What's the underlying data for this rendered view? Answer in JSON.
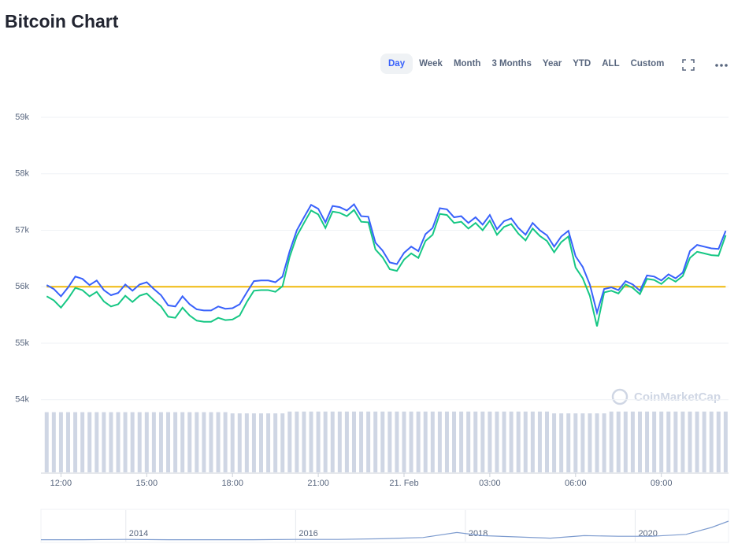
{
  "header": {
    "title": "Bitcoin Chart"
  },
  "toolbar": {
    "buttons": [
      "Day",
      "Week",
      "Month",
      "3 Months",
      "Year",
      "YTD",
      "ALL",
      "Custom"
    ],
    "active": 0
  },
  "watermark": "CoinMarketCap",
  "chart_data": {
    "type": "line",
    "x": [
      11.5,
      11.75,
      12,
      12.25,
      12.5,
      12.75,
      13,
      13.25,
      13.5,
      13.75,
      14,
      14.25,
      14.5,
      14.75,
      15,
      15.25,
      15.5,
      15.75,
      16,
      16.25,
      16.5,
      16.75,
      17,
      17.25,
      17.5,
      17.75,
      18,
      18.25,
      18.5,
      18.75,
      19,
      19.25,
      19.5,
      19.75,
      20,
      20.25,
      20.5,
      20.75,
      21,
      21.25,
      21.5,
      21.75,
      22,
      22.25,
      22.5,
      22.75,
      23,
      23.25,
      23.5,
      23.75,
      24,
      24.25,
      24.5,
      24.75,
      25,
      25.25,
      25.5,
      25.75,
      26,
      26.25,
      26.5,
      26.75,
      27,
      27.25,
      27.5,
      27.75,
      28,
      28.25,
      28.5,
      28.75,
      29,
      29.25,
      29.5,
      29.75,
      30,
      30.25,
      30.5,
      30.75,
      31,
      31.25,
      31.5,
      31.75,
      32,
      32.25,
      32.5,
      32.75,
      33,
      33.25,
      33.5,
      33.75,
      34,
      34.25,
      34.5,
      34.75,
      35,
      35.25
    ],
    "series": [
      {
        "color": "#3861fb",
        "values": [
          56030,
          55960,
          55830,
          55990,
          56180,
          56140,
          56030,
          56110,
          55940,
          55850,
          55890,
          56040,
          55930,
          56040,
          56080,
          55960,
          55850,
          55670,
          55650,
          55830,
          55690,
          55600,
          55580,
          55580,
          55650,
          55610,
          55620,
          55690,
          55900,
          56100,
          56110,
          56110,
          56080,
          56180,
          56630,
          57000,
          57230,
          57450,
          57380,
          57140,
          57430,
          57410,
          57350,
          57460,
          57250,
          57240,
          56780,
          56640,
          56430,
          56400,
          56600,
          56710,
          56630,
          56930,
          57040,
          57390,
          57370,
          57230,
          57250,
          57130,
          57230,
          57100,
          57270,
          57020,
          57160,
          57210,
          57040,
          56920,
          57130,
          57000,
          56910,
          56710,
          56890,
          56990,
          56540,
          56350,
          56040,
          55540,
          55960,
          55990,
          55940,
          56100,
          56040,
          55930,
          56200,
          56180,
          56110,
          56220,
          56150,
          56250,
          56630,
          56740,
          56710,
          56680,
          56670,
          56990
        ]
      },
      {
        "color": "#16c784",
        "values": [
          55830,
          55760,
          55630,
          55790,
          55980,
          55940,
          55830,
          55910,
          55740,
          55650,
          55690,
          55840,
          55730,
          55840,
          55880,
          55760,
          55650,
          55470,
          55450,
          55630,
          55490,
          55400,
          55380,
          55380,
          55450,
          55410,
          55420,
          55490,
          55730,
          55930,
          55940,
          55940,
          55910,
          56010,
          56530,
          56900,
          57130,
          57350,
          57280,
          57040,
          57330,
          57310,
          57250,
          57360,
          57150,
          57140,
          56660,
          56520,
          56310,
          56280,
          56480,
          56590,
          56510,
          56810,
          56920,
          57290,
          57270,
          57130,
          57150,
          57030,
          57130,
          57000,
          57170,
          56920,
          57060,
          57110,
          56940,
          56820,
          57030,
          56900,
          56810,
          56610,
          56790,
          56890,
          56340,
          56150,
          55840,
          55300,
          55900,
          55930,
          55880,
          56040,
          55980,
          55870,
          56140,
          56120,
          56050,
          56160,
          56090,
          56190,
          56510,
          56620,
          56590,
          56560,
          56550,
          56910
        ]
      }
    ],
    "reference_line": {
      "value": 56000,
      "color": "#f0b90b"
    },
    "volume": {
      "color": "#cfd6e4",
      "ylim": [
        0,
        100
      ],
      "values": [
        98,
        98,
        98,
        98,
        98,
        98,
        98,
        98,
        98,
        98,
        98,
        98,
        98,
        98,
        98,
        98,
        98,
        98,
        98,
        98,
        98,
        98,
        98,
        98,
        98,
        98,
        96,
        96,
        96,
        96,
        96,
        96,
        96,
        96,
        99,
        99,
        99,
        99,
        99,
        99,
        99,
        99,
        99,
        99,
        99,
        99,
        99,
        99,
        99,
        99,
        99,
        99,
        99,
        99,
        99,
        99,
        99,
        99,
        99,
        99,
        99,
        99,
        99,
        99,
        99,
        99,
        99,
        99,
        99,
        99,
        99,
        96,
        96,
        96,
        96,
        96,
        96,
        96,
        96,
        99,
        99,
        99,
        99,
        99,
        99,
        99,
        99,
        99,
        99,
        99,
        99,
        99,
        99,
        99,
        99,
        99
      ]
    },
    "xlim": [
      11.3,
      35.35
    ],
    "xticks": [
      {
        "value": 12,
        "label": "12:00"
      },
      {
        "value": 15,
        "label": "15:00"
      },
      {
        "value": 18,
        "label": "18:00"
      },
      {
        "value": 21,
        "label": "21:00"
      },
      {
        "value": 24,
        "label": "21. Feb"
      },
      {
        "value": 27,
        "label": "03:00"
      },
      {
        "value": 30,
        "label": "06:00"
      },
      {
        "value": 33,
        "label": "09:00"
      }
    ],
    "ylim": [
      52700,
      59000
    ],
    "yticks": [
      {
        "value": 54000,
        "label": "54k"
      },
      {
        "value": 55000,
        "label": "55k"
      },
      {
        "value": 56000,
        "label": "56k"
      },
      {
        "value": 57000,
        "label": "57k"
      },
      {
        "value": 58000,
        "label": "58k"
      },
      {
        "value": 59000,
        "label": "59k"
      }
    ],
    "grid": true,
    "navigator": {
      "color": "#7e9ccf",
      "ylim": [
        0,
        100
      ],
      "x": [
        2013,
        2013.5,
        2014,
        2014.5,
        2015,
        2015.5,
        2016,
        2016.5,
        2017,
        2017.5,
        2017.9,
        2018.2,
        2018.6,
        2019,
        2019.4,
        2019.8,
        2020.2,
        2020.6,
        2020.9,
        2021.1
      ],
      "values": [
        1,
        1,
        2,
        1,
        1,
        1,
        2,
        2,
        4,
        8,
        24,
        14,
        10,
        6,
        14,
        12,
        12,
        18,
        40,
        60
      ],
      "xlim": [
        2013,
        2021.1
      ],
      "xticks": [
        {
          "value": 2014,
          "label": "2014"
        },
        {
          "value": 2016,
          "label": "2016"
        },
        {
          "value": 2018,
          "label": "2018"
        },
        {
          "value": 2020,
          "label": "2020"
        }
      ]
    }
  }
}
